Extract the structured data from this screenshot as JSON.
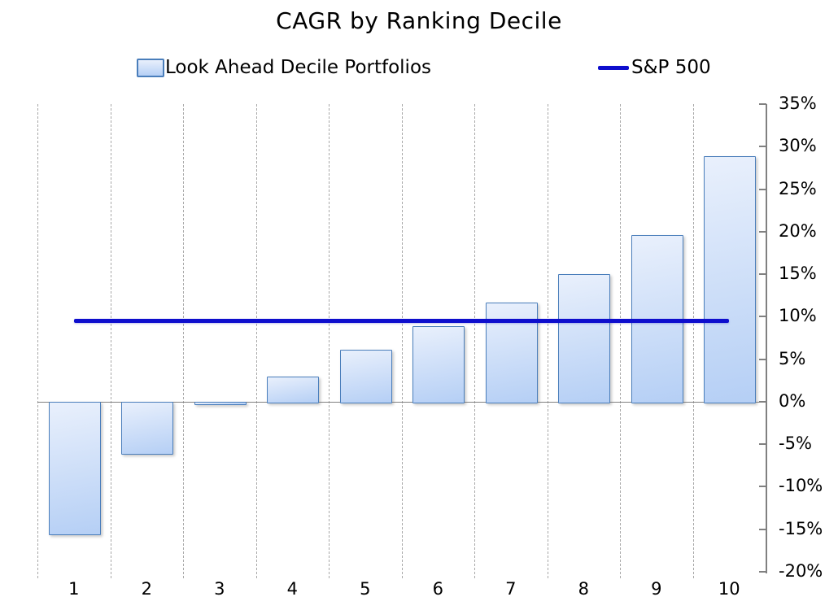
{
  "title": "CAGR by Ranking Decile",
  "legend": {
    "bars_label": "Look Ahead Decile Portfolios",
    "line_label": "S&P 500"
  },
  "colors": {
    "bar_fill_top": "#e9f0fc",
    "bar_fill_bottom": "#b5cff5",
    "bar_border": "#4a7ebb",
    "line": "#0e0ecd",
    "axis": "#808080",
    "gridline": "#a8a8a8",
    "text": "#000000"
  },
  "chart_data": {
    "type": "bar",
    "title": "CAGR by Ranking Decile",
    "xlabel": "",
    "ylabel": "",
    "categories": [
      "1",
      "2",
      "3",
      "4",
      "5",
      "6",
      "7",
      "8",
      "9",
      "10"
    ],
    "series": [
      {
        "name": "Look Ahead Decile Portfolios",
        "type": "bar",
        "values": [
          -15.5,
          -6.0,
          -0.2,
          3.0,
          6.1,
          8.9,
          11.7,
          15.0,
          19.6,
          28.9
        ]
      },
      {
        "name": "S&P 500",
        "type": "line",
        "value": 9.5
      }
    ],
    "ylim": [
      -20,
      35
    ],
    "ytick_step": 5,
    "y_tick_labels": [
      "35%",
      "30%",
      "25%",
      "20%",
      "15%",
      "10%",
      "5%",
      "0%",
      "-5%",
      "-10%",
      "-15%",
      "-20%"
    ],
    "grid": "vertical-dashed",
    "legend_position": "top"
  }
}
